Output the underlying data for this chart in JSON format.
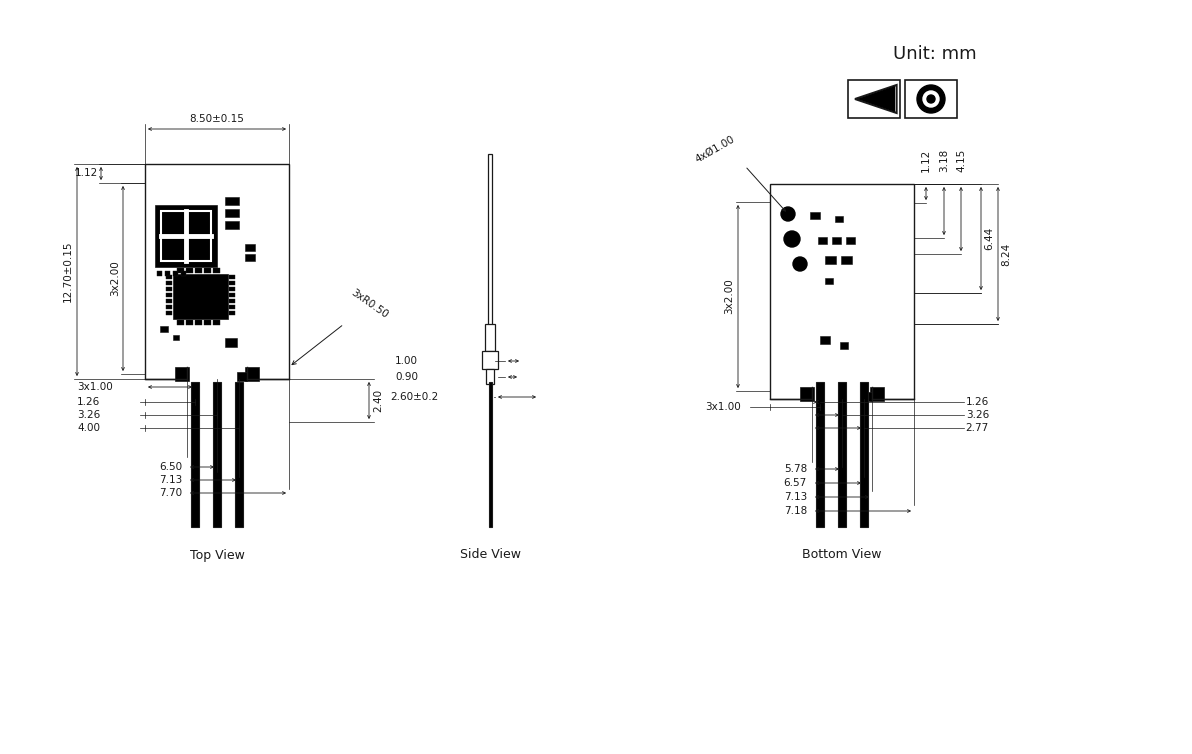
{
  "bg_color": "#ffffff",
  "line_color": "#1a1a1a",
  "text_color": "#1a1a1a",
  "unit_text": "Unit: mm",
  "top_view_label": "Top View",
  "side_view_label": "Side View",
  "bottom_view_label": "Bottom View",
  "top_view_dims": {
    "width_dim": "8.50±0.15",
    "height_dim": "12.70±0.15",
    "d1": "1.12",
    "d2": "3x2.00",
    "d3": "3xR0.50",
    "d4": "2.40",
    "pin1": "3x1.00",
    "pin2": "1.26",
    "pin3": "3.26",
    "pin4": "4.00",
    "pin5": "6.50",
    "pin6": "7.13",
    "pin7": "7.70"
  },
  "side_view_dims": {
    "d1": "1.00",
    "d2": "0.90",
    "d3": "2.60±0.2"
  },
  "bottom_view_dims": {
    "d1": "4xØ1.00",
    "d2": "3x2.00",
    "d3": "1.12",
    "d4": "3.18",
    "d5": "4.15",
    "d6": "6.44",
    "d7": "8.24",
    "d8": "3x1.00",
    "d9": "1.26",
    "d10": "3.26",
    "d11": "2.77",
    "d12": "5.78",
    "d13": "6.57",
    "d14": "7.13",
    "d15": "7.18"
  }
}
